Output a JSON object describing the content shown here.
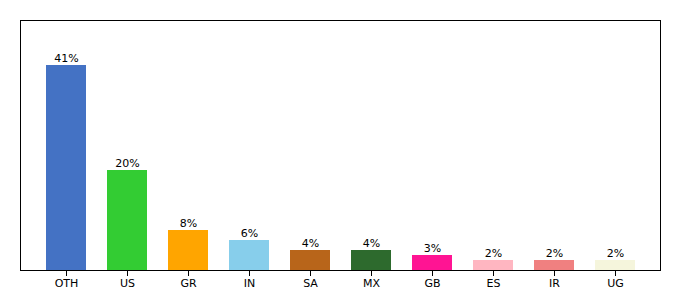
{
  "chart_data": {
    "type": "bar",
    "categories": [
      "OTH",
      "US",
      "GR",
      "IN",
      "SA",
      "MX",
      "GB",
      "ES",
      "IR",
      "UG"
    ],
    "values": [
      41,
      20,
      8,
      6,
      4,
      4,
      3,
      2,
      2,
      2
    ],
    "value_labels": [
      "41%",
      "20%",
      "8%",
      "6%",
      "4%",
      "4%",
      "3%",
      "2%",
      "2%",
      "2%"
    ],
    "colors": [
      "#4472C4",
      "#33CC33",
      "#FFA500",
      "#87CEEB",
      "#B8651A",
      "#2D6A2D",
      "#FF1493",
      "#FFB6C1",
      "#F08080",
      "#F5F5DC"
    ],
    "ylim": [
      0,
      50
    ],
    "data_labels": true,
    "tick_labels": "x"
  }
}
